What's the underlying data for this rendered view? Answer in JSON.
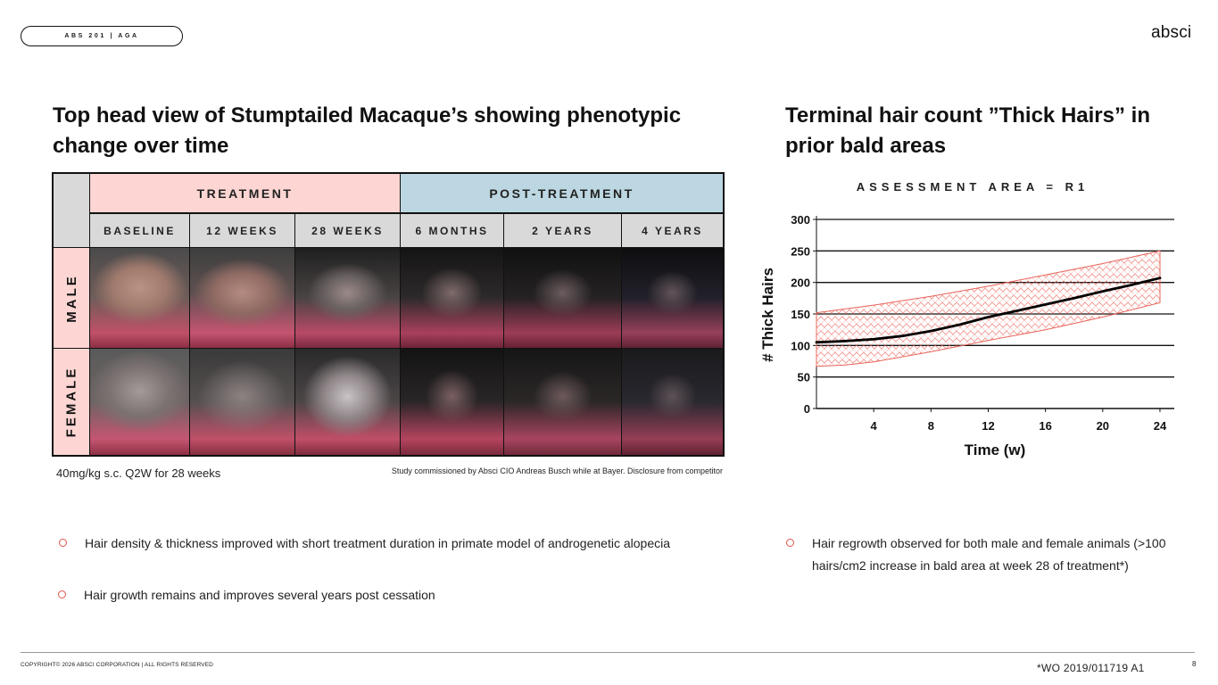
{
  "header": {
    "tag": "ABS 201 | AGA",
    "logo": "absci"
  },
  "left": {
    "title": "Top head view of Stumptailed Macaque’s showing phenotypic change over time",
    "grid": {
      "groups": [
        "TREATMENT",
        "POST-TREATMENT"
      ],
      "columns": [
        "BASELINE",
        "12 WEEKS",
        "28 WEEKS",
        "6 MONTHS",
        "2 YEARS",
        "4 YEARS"
      ],
      "rows": [
        "MALE",
        "FEMALE"
      ]
    },
    "dose_note": "40mg/kg s.c. Q2W for 28 weeks",
    "credit": "Study commissioned by Absci CIO Andreas Busch while at Bayer. Disclosure from competitor",
    "bullets": [
      "Hair density & thickness improved with short treatment duration in primate model of androgenetic alopecia",
      "Hair growth remains and improves several years post cessation"
    ]
  },
  "right": {
    "title": "Terminal hair count ”Thick Hairs” in prior bald areas",
    "bullets": [
      "Hair regrowth observed for both male and female animals (>100 hairs/cm2  increase in bald area at week 28 of treatment*)"
    ]
  },
  "chart_data": {
    "type": "line",
    "title": "ASSESSMENT AREA = R1",
    "xlabel": "Time (w)",
    "ylabel": "# Thick Hairs",
    "xlim": [
      0,
      25
    ],
    "ylim": [
      0,
      300
    ],
    "x_ticks": [
      4,
      8,
      12,
      16,
      20,
      24
    ],
    "y_ticks": [
      0,
      50,
      100,
      150,
      200,
      250,
      300
    ],
    "grid": "horizontal",
    "series": [
      {
        "values": [
          [
            0,
            105
          ],
          [
            2,
            107
          ],
          [
            4,
            110
          ],
          [
            6,
            115
          ],
          [
            8,
            123
          ],
          [
            10,
            133
          ],
          [
            12,
            145
          ],
          [
            14,
            155
          ],
          [
            16,
            165
          ],
          [
            18,
            175
          ],
          [
            20,
            186
          ],
          [
            22,
            196
          ],
          [
            24,
            207
          ]
        ]
      }
    ],
    "band": {
      "upper": [
        [
          0,
          152
        ],
        [
          4,
          164
        ],
        [
          8,
          178
        ],
        [
          12,
          194
        ],
        [
          16,
          212
        ],
        [
          20,
          230
        ],
        [
          24,
          250
        ]
      ],
      "lower": [
        [
          0,
          67
        ],
        [
          2,
          69
        ],
        [
          4,
          74
        ],
        [
          8,
          90
        ],
        [
          12,
          108
        ],
        [
          16,
          125
        ],
        [
          20,
          145
        ],
        [
          24,
          168
        ]
      ],
      "color": "#e8645a"
    },
    "line_color": "#000000"
  },
  "footer": {
    "copyright": "COPYRIGHT© 2026 ABSCI CORPORATION | ALL RIGHTS RESERVED",
    "reference": "*WO 2019/011719 A1",
    "page": "8"
  }
}
